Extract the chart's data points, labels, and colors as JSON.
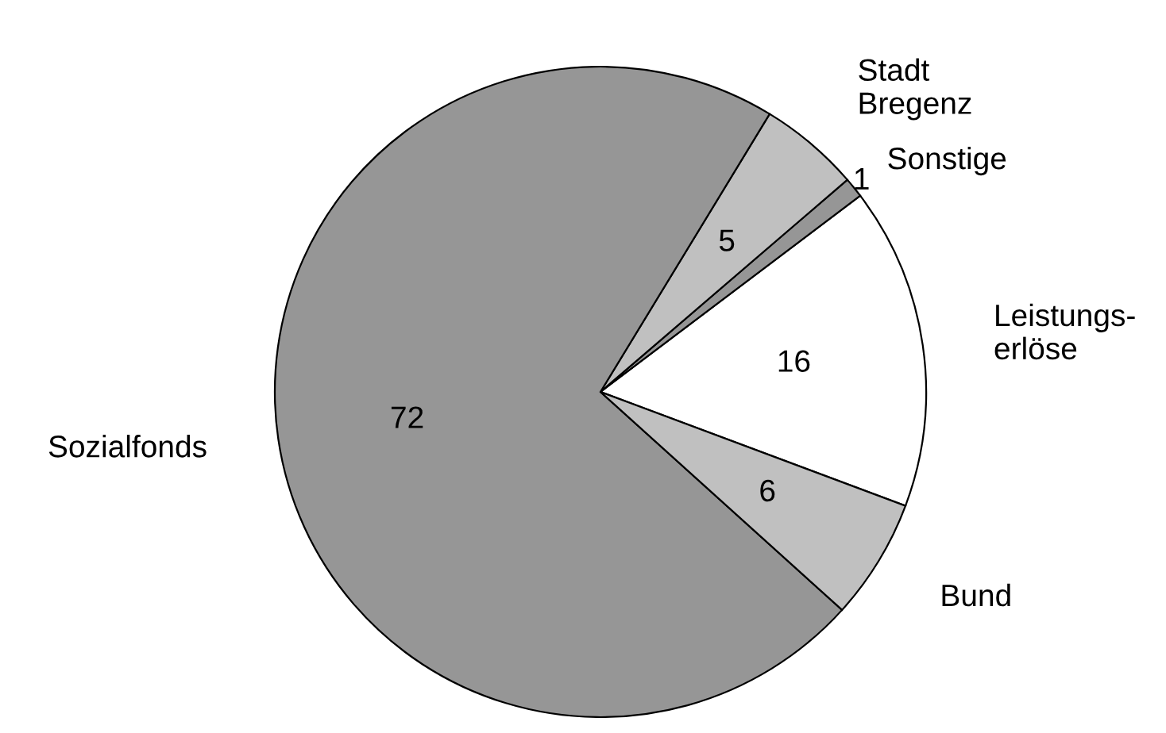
{
  "chart_data": {
    "type": "pie",
    "categories": [
      "Leistungs-\nerlöse",
      "Sonstige",
      "Stadt\nBregenz",
      "Sozialfonds",
      "Bund"
    ],
    "values": [
      16,
      1,
      5,
      72,
      6
    ],
    "colors": [
      "#ffffff",
      "#969696",
      "#c0c0c0",
      "#969696",
      "#c0c0c0"
    ],
    "data_labels": true
  }
}
